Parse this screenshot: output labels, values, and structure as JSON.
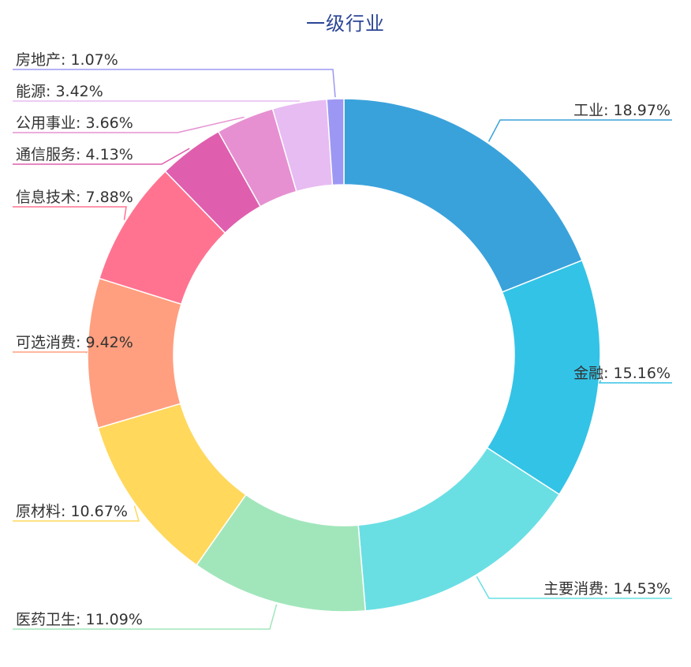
{
  "chart_data": {
    "type": "pie",
    "title": "一级行业",
    "donut": true,
    "slices": [
      {
        "label": "工业",
        "value": 18.97,
        "display": "工业: 18.97%",
        "color": "#3aa2db"
      },
      {
        "label": "金融",
        "value": 15.16,
        "display": "金融: 15.16%",
        "color": "#33c3e6"
      },
      {
        "label": "主要消费",
        "value": 14.53,
        "display": "主要消费: 14.53%",
        "color": "#69dfe4"
      },
      {
        "label": "医药卫生",
        "value": 11.09,
        "display": "医药卫生: 11.09%",
        "color": "#a1e6bb"
      },
      {
        "label": "原材料",
        "value": 10.67,
        "display": "原材料: 10.67%",
        "color": "#ffd85c"
      },
      {
        "label": "可选消费",
        "value": 9.42,
        "display": "可选消费: 9.42%",
        "color": "#ff9f7f"
      },
      {
        "label": "信息技术",
        "value": 7.88,
        "display": "信息技术: 7.88%",
        "color": "#ff7391"
      },
      {
        "label": "通信服务",
        "value": 4.13,
        "display": "通信服务: 4.13%",
        "color": "#df5fae"
      },
      {
        "label": "公用事业",
        "value": 3.66,
        "display": "公用事业: 3.66%",
        "color": "#e690d1"
      },
      {
        "label": "能源",
        "value": 3.42,
        "display": "能源: 3.42%",
        "color": "#e7bcf2"
      },
      {
        "label": "房地产",
        "value": 1.07,
        "display": "房地产: 1.07%",
        "color": "#9d97f4"
      }
    ]
  }
}
